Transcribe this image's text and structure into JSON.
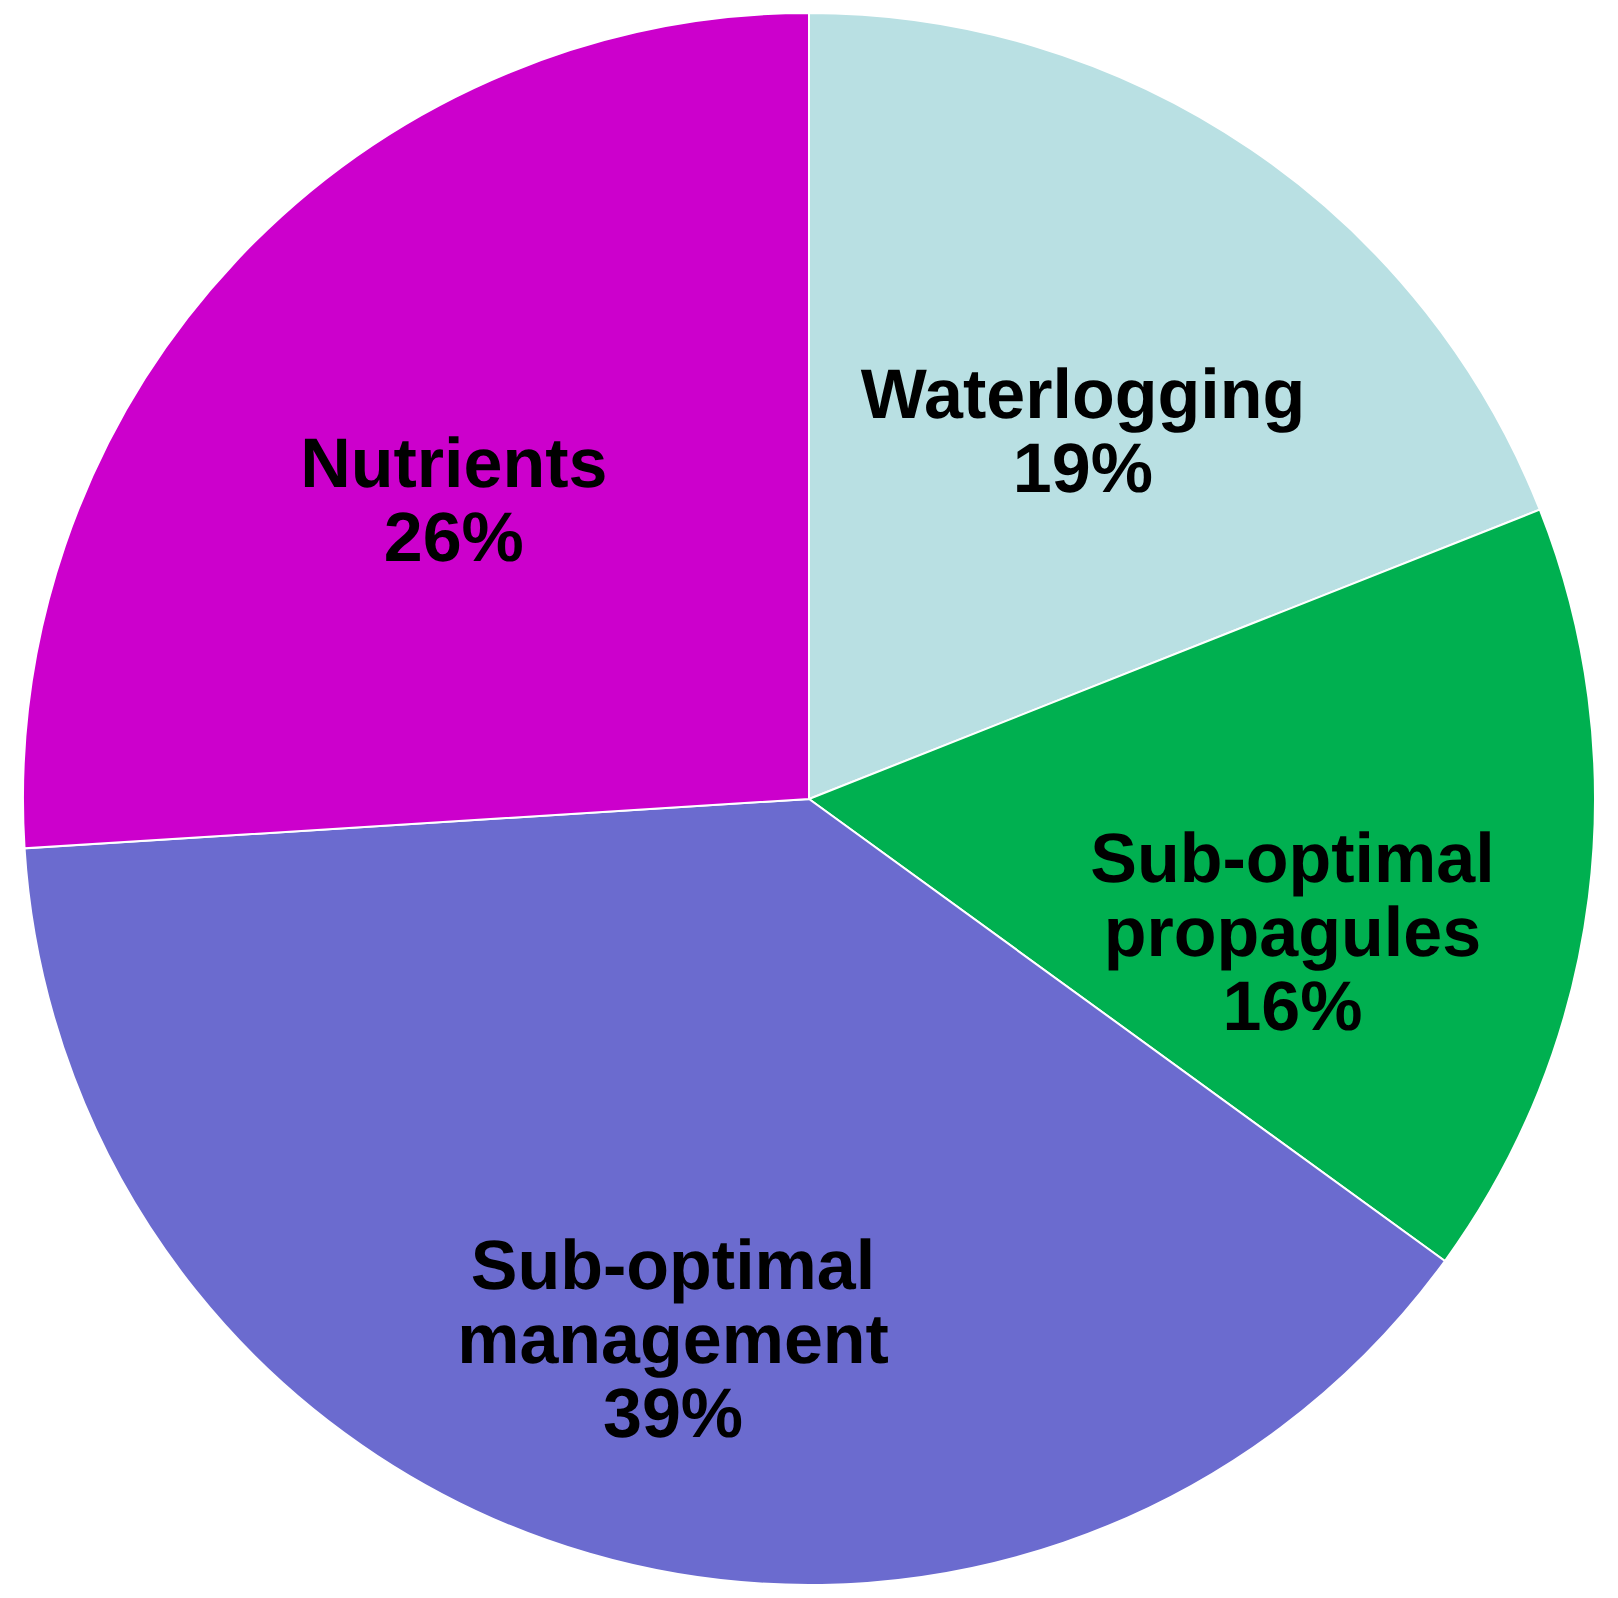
{
  "chart_data": {
    "type": "pie",
    "categories": [
      "Waterlogging",
      "Sub-optimal propagules",
      "Sub-optimal management",
      "Nutrients"
    ],
    "values": [
      19,
      16,
      39,
      26
    ],
    "value_labels": [
      "19%",
      "16%",
      "39%",
      "26%"
    ],
    "colors": [
      "#b9e0e3",
      "#00b050",
      "#6b6bcf",
      "#cc00cc"
    ]
  }
}
